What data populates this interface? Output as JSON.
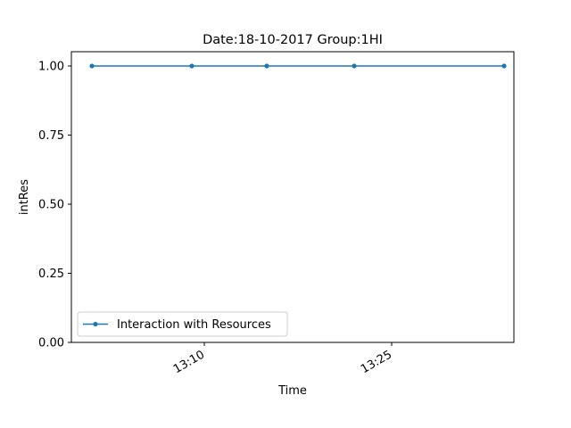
{
  "chart_data": {
    "type": "line",
    "title": "Date:18-10-2017  Group:1HI",
    "xlabel": "Time",
    "ylabel": "intRes",
    "x": [
      "13:01",
      "13:09",
      "13:15",
      "13:22",
      "13:34"
    ],
    "x_ticks": [
      "13:10",
      "13:25"
    ],
    "ylim": [
      0.0,
      1.0
    ],
    "y_ticks": [
      "0.00",
      "0.25",
      "0.50",
      "0.75",
      "1.00"
    ],
    "grid": false,
    "legend_position": "lower-left",
    "series": [
      {
        "name": "Interaction with Resources",
        "color": "#1f77b4",
        "marker": "dot",
        "values": [
          1.0,
          1.0,
          1.0,
          1.0,
          1.0
        ]
      }
    ]
  }
}
